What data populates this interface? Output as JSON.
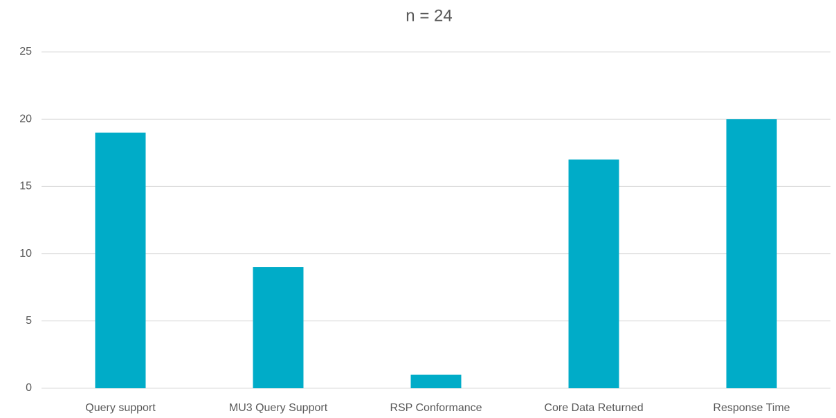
{
  "chart_data": {
    "type": "bar",
    "title": "n = 24",
    "categories": [
      "Query support",
      "MU3 Query Support",
      "RSP Conformance",
      "Core Data Returned",
      "Response Time"
    ],
    "values": [
      19,
      9,
      1,
      17,
      20
    ],
    "color": "#00acc8",
    "ylim": [
      0,
      25
    ],
    "yticks": [
      0,
      5,
      10,
      15,
      20,
      25
    ],
    "grid": true
  }
}
